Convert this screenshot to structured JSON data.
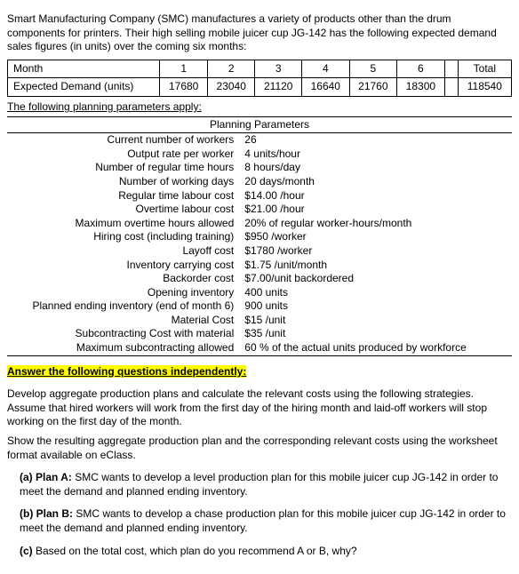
{
  "intro": "Smart Manufacturing Company (SMC) manufactures a variety of products other than the drum components for printers. Their high selling mobile juicer cup JG-142 has the following expected demand sales figures (in units) over the coming six months:",
  "demand_table": {
    "row1_label": "Month",
    "row2_label": "Expected Demand (units)",
    "months": [
      "1",
      "2",
      "3",
      "4",
      "5",
      "6"
    ],
    "total_label": "Total",
    "values": [
      "17680",
      "23040",
      "21120",
      "16640",
      "21760",
      "18300"
    ],
    "total_value": "118540"
  },
  "params_intro": "The following planning parameters apply:",
  "params_heading": "Planning Parameters",
  "params": [
    {
      "name": "Current number of workers",
      "value": "26"
    },
    {
      "name": "Output rate per worker",
      "value": "4 units/hour"
    },
    {
      "name": "Number of regular time hours",
      "value": "8 hours/day"
    },
    {
      "name": "Number of working days",
      "value": "20 days/month"
    },
    {
      "name": "Regular time labour cost",
      "value": "$14.00 /hour"
    },
    {
      "name": "Overtime labour cost",
      "value": "$21.00 /hour"
    },
    {
      "name": "Maximum overtime hours allowed",
      "value": "20% of regular worker-hours/month"
    },
    {
      "name": "Hiring cost (including training)",
      "value": "$950 /worker"
    },
    {
      "name": "Layoff cost",
      "value": "$1780 /worker"
    },
    {
      "name": "Inventory carrying cost",
      "value": "$1.75 /unit/month"
    },
    {
      "name": "Backorder cost",
      "value": "$7.00/unit backordered"
    },
    {
      "name": "Opening inventory",
      "value": "400 units"
    },
    {
      "name": "Planned ending inventory (end of month 6)",
      "value": "900 units"
    },
    {
      "name": "Material Cost",
      "value": "$15 /unit"
    },
    {
      "name": "Subcontracting Cost with material",
      "value": "$35 /unit"
    },
    {
      "name": "Maximum subcontracting allowed",
      "value": "60 % of the actual units produced by workforce"
    }
  ],
  "answer_heading": "Answer the following questions independently:",
  "para1": "Develop aggregate production plans and calculate the relevant costs using the following strategies. Assume that hired workers will work from the first day of the hiring month and laid-off workers will stop working on the first day of the month.",
  "para2": "Show the resulting aggregate production plan and the corresponding relevant costs using the worksheet format available on eClass.",
  "planA_label": "(a) Plan A:",
  "planA_text": " SMC wants to develop a level production plan for this mobile juicer cup JG-142 in order to meet the demand and planned ending inventory.",
  "planB_label": "(b)  Plan B:",
  "planB_text": " SMC wants to develop a chase production plan for this mobile juicer cup JG-142 in order to meet the demand and planned ending inventory.",
  "planC_label": "(c)",
  "planC_text": " Based on the total cost, which plan do you recommend A or B, why?"
}
